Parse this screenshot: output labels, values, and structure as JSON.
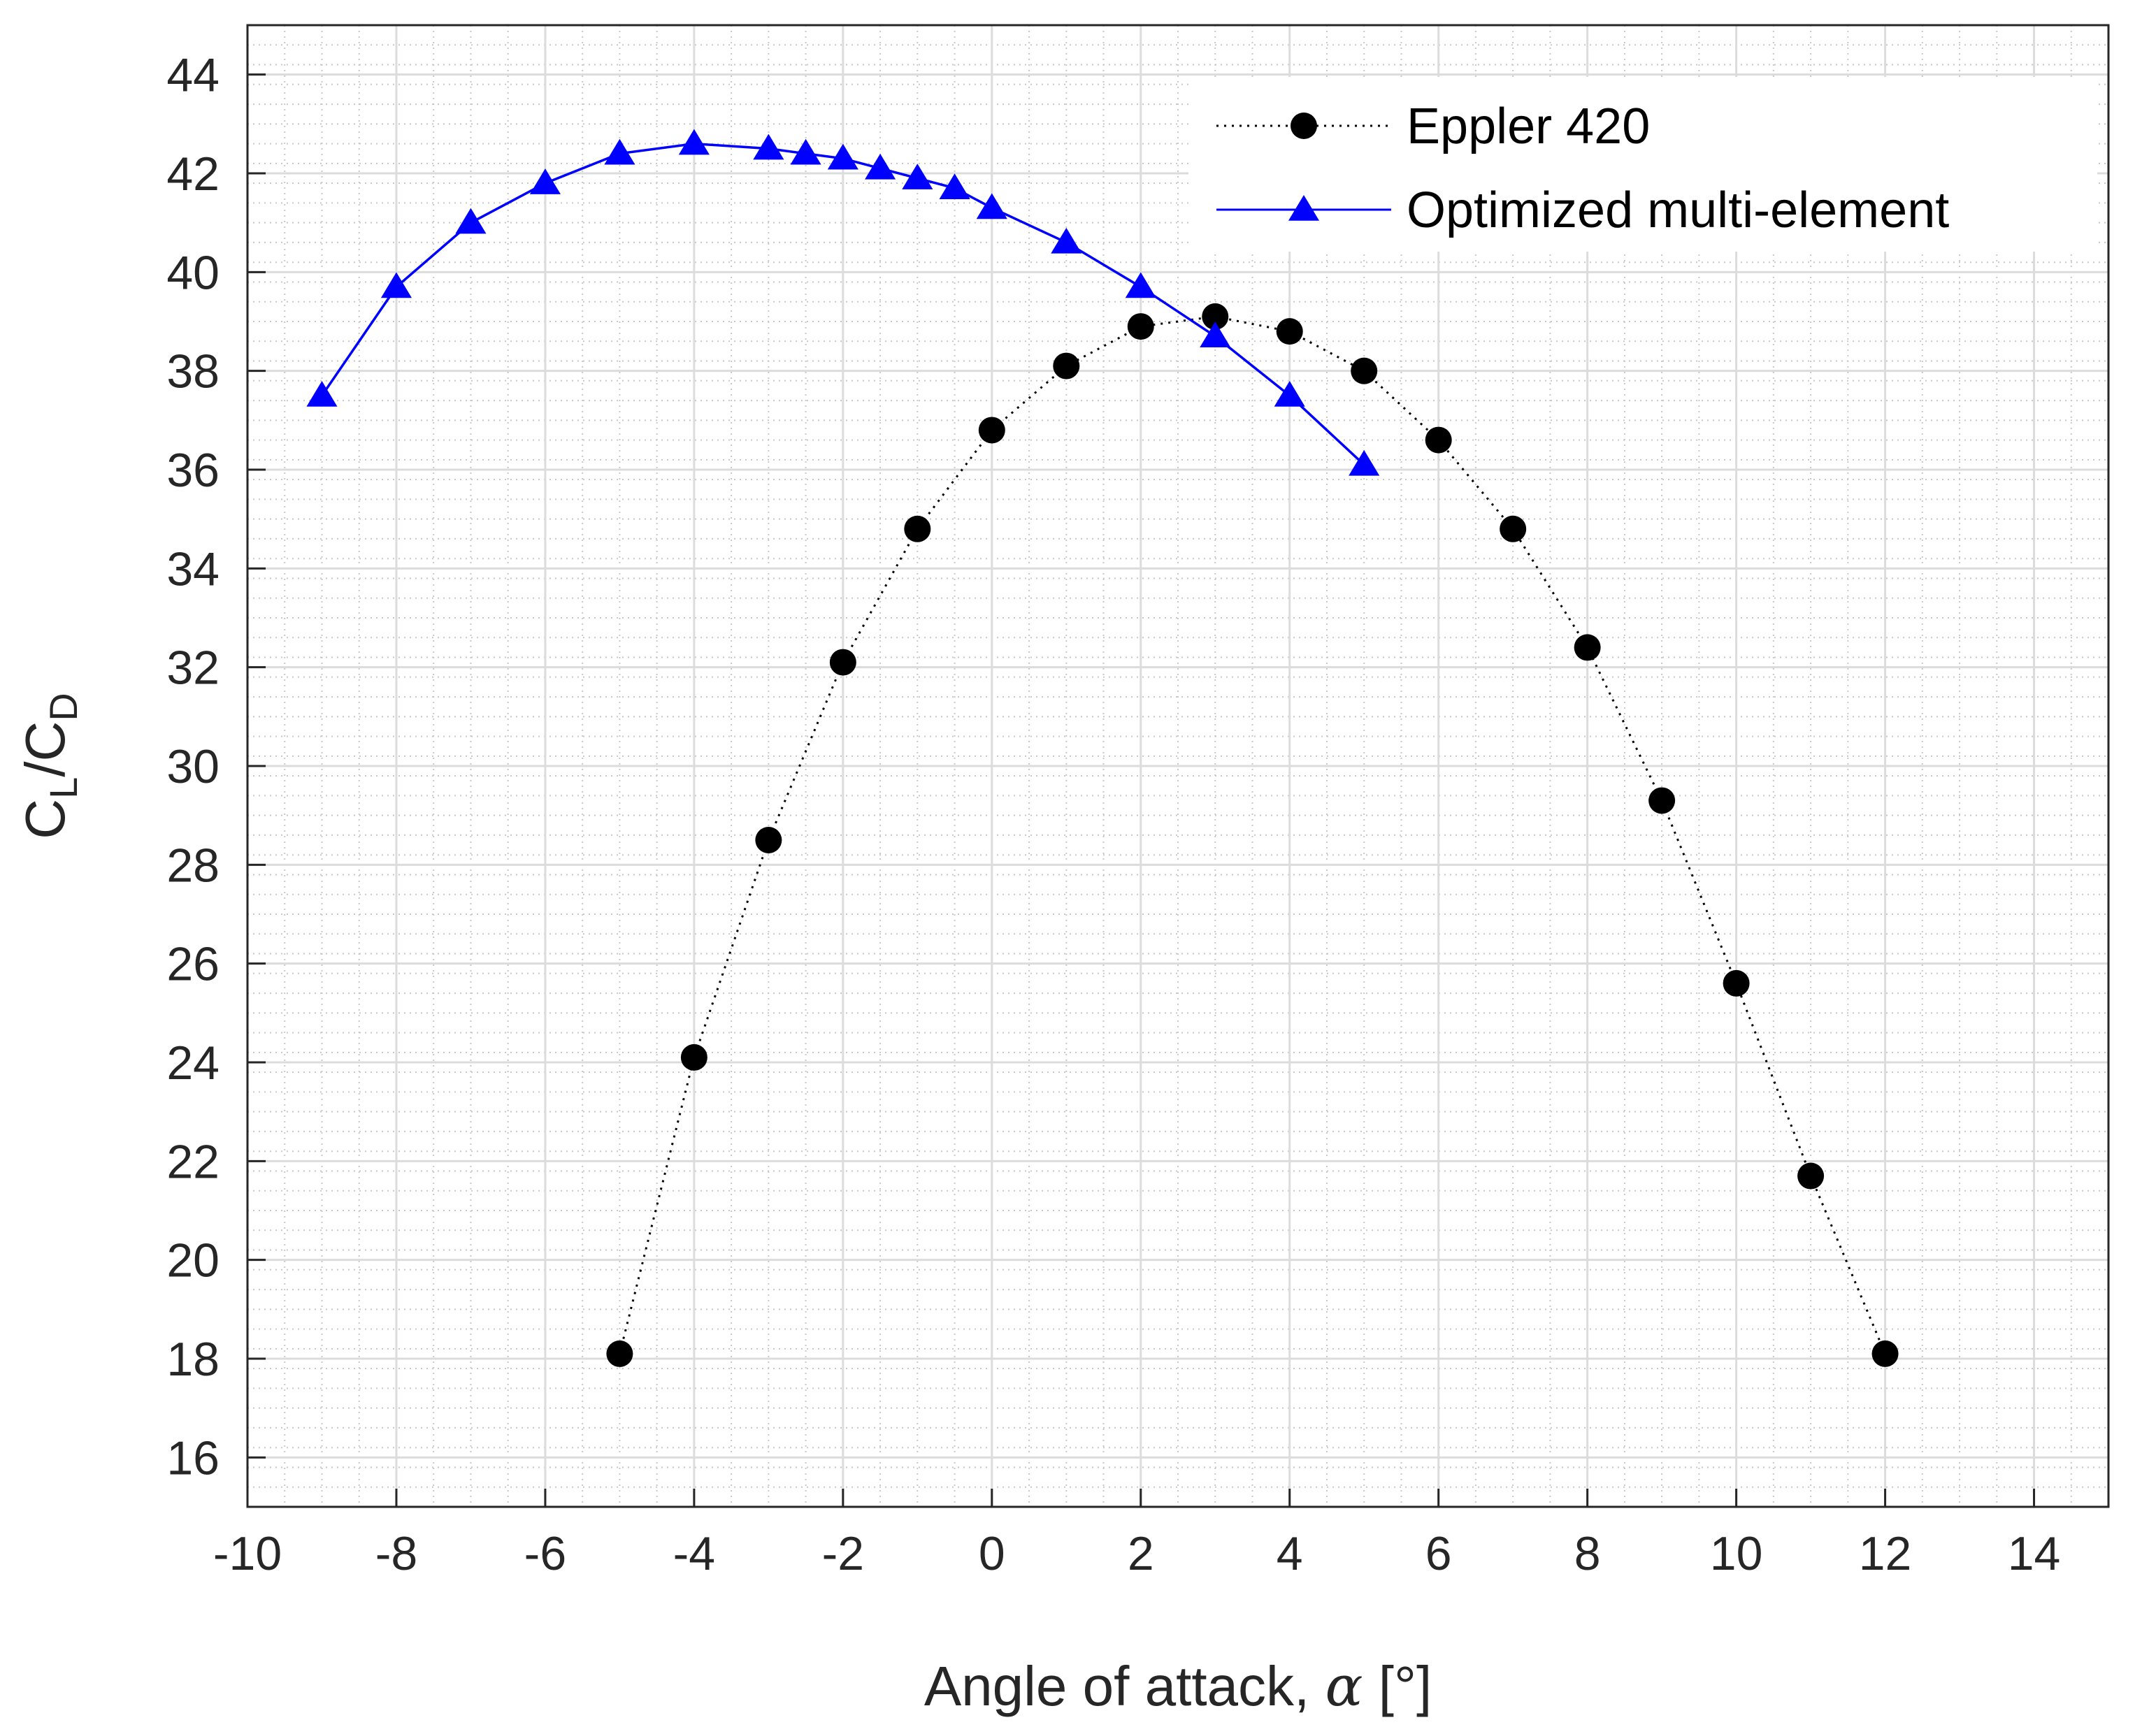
{
  "chart_data": {
    "type": "line",
    "xlabel": {
      "prefix": "Angle of attack, ",
      "symbol": "α",
      "suffix": " [°]"
    },
    "ylabel": {
      "main1": "C",
      "sub1": "L",
      "main2": "/C",
      "sub2": "D"
    },
    "xlim": [
      -10,
      15
    ],
    "ylim": [
      15,
      45
    ],
    "xticks": [
      -10,
      -8,
      -6,
      -4,
      -2,
      0,
      2,
      4,
      6,
      8,
      10,
      12,
      14
    ],
    "yticks": [
      16,
      18,
      20,
      22,
      24,
      26,
      28,
      30,
      32,
      34,
      36,
      38,
      40,
      42,
      44
    ],
    "grid": true,
    "minor_grid": true,
    "legend_position": "top-right",
    "series": [
      {
        "name": "Eppler 420",
        "color": "#000000",
        "line_style": "dotted",
        "marker": "circle",
        "x": [
          -5,
          -4,
          -3,
          -2,
          -1,
          0,
          1,
          2,
          3,
          4,
          5,
          6,
          7,
          8,
          9,
          10,
          11,
          12
        ],
        "y": [
          18.1,
          24.1,
          28.5,
          32.1,
          34.8,
          36.8,
          38.1,
          38.9,
          39.1,
          38.8,
          38.0,
          36.6,
          34.8,
          32.4,
          29.3,
          25.6,
          21.7,
          18.1
        ]
      },
      {
        "name": "Optimized multi-element",
        "color": "#0000ff",
        "line_style": "solid",
        "marker": "triangle",
        "x": [
          -9,
          -8,
          -7,
          -6,
          -5,
          -4,
          -3,
          -2.5,
          -2,
          -1.5,
          -1,
          -0.5,
          0,
          1,
          2,
          3,
          4,
          5
        ],
        "y": [
          37.5,
          39.7,
          41.0,
          41.8,
          42.4,
          42.6,
          42.5,
          42.4,
          42.3,
          42.1,
          41.9,
          41.7,
          41.3,
          40.6,
          39.7,
          38.7,
          37.5,
          36.1
        ]
      }
    ]
  }
}
